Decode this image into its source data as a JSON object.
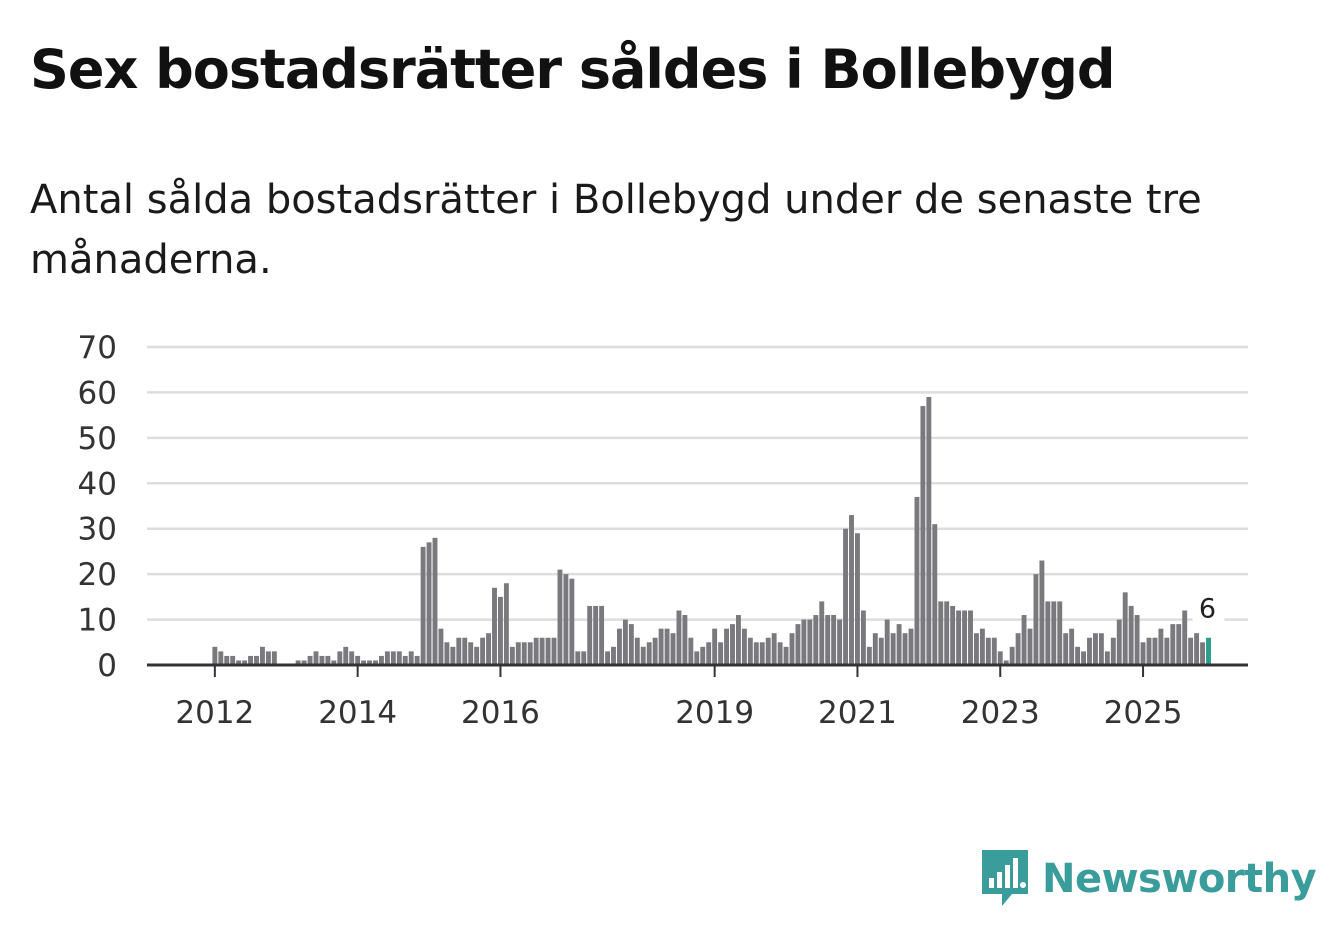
{
  "chart_data": {
    "type": "bar",
    "title": "Sex bostadsrätter såldes i Bollebygd",
    "subtitle": "Antal sålda bostadsrätter i Bollebygd under de senaste tre månaderna.",
    "xlabel": "",
    "ylabel": "",
    "ylim": [
      0,
      70
    ],
    "yticks": [
      0,
      10,
      20,
      30,
      40,
      50,
      60,
      70
    ],
    "grid": true,
    "xtick_labels": [
      {
        "label": "2012",
        "index": 3
      },
      {
        "label": "2014",
        "index": 27
      },
      {
        "label": "2016",
        "index": 51
      },
      {
        "label": "2019",
        "index": 87
      },
      {
        "label": "2021",
        "index": 111
      },
      {
        "label": "2023",
        "index": 135
      },
      {
        "label": "2025",
        "index": 159
      }
    ],
    "values": [
      0,
      0,
      0,
      4,
      3,
      2,
      2,
      1,
      1,
      2,
      2,
      4,
      3,
      3,
      0,
      0,
      0,
      1,
      1,
      2,
      3,
      2,
      2,
      1,
      3,
      4,
      3,
      2,
      1,
      1,
      1,
      2,
      3,
      3,
      3,
      2,
      3,
      2,
      26,
      27,
      28,
      8,
      5,
      4,
      6,
      6,
      5,
      4,
      6,
      7,
      17,
      15,
      18,
      4,
      5,
      5,
      5,
      6,
      6,
      6,
      6,
      21,
      20,
      19,
      3,
      3,
      13,
      13,
      13,
      3,
      4,
      8,
      10,
      9,
      6,
      4,
      5,
      6,
      8,
      8,
      7,
      12,
      11,
      6,
      3,
      4,
      5,
      8,
      5,
      8,
      9,
      11,
      8,
      6,
      5,
      5,
      6,
      7,
      5,
      4,
      7,
      9,
      10,
      10,
      11,
      14,
      11,
      11,
      10,
      30,
      33,
      29,
      12,
      4,
      7,
      6,
      10,
      7,
      9,
      7,
      8,
      37,
      57,
      59,
      31,
      14,
      14,
      13,
      12,
      12,
      12,
      7,
      8,
      6,
      6,
      3,
      1,
      4,
      7,
      11,
      8,
      20,
      23,
      14,
      14,
      14,
      7,
      8,
      4,
      3,
      6,
      7,
      7,
      3,
      6,
      10,
      16,
      13,
      11,
      5,
      6,
      6,
      8,
      6,
      9,
      9,
      12,
      6,
      7,
      5,
      6
    ],
    "highlight_index": 170,
    "highlight_label": "6",
    "colors": {
      "bar": "#7a797e",
      "highlight": "#2a9d8f",
      "grid": "#dddddd",
      "axis": "#333333"
    }
  },
  "brand": {
    "name": "Newsworthy",
    "color": "#3a9d9b"
  }
}
